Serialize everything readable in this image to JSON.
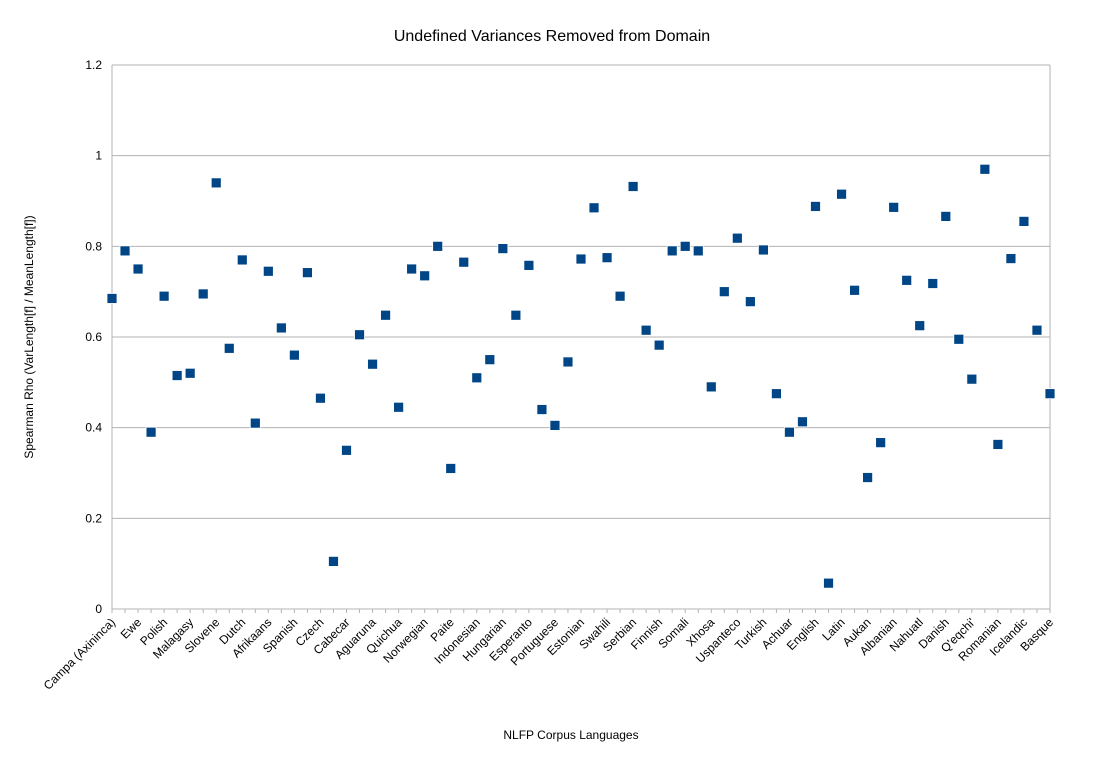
{
  "chart_data": {
    "type": "scatter",
    "title": "Undefined Variances Removed from Domain",
    "xlabel": "NLFP Corpus Languages",
    "ylabel": "Spearman Rho (VarLength[f] / MeanLength[f])",
    "ylim": [
      0,
      1.2
    ],
    "yticks": [
      "0",
      "0.2",
      "0.4",
      "0.6",
      "0.8",
      "1",
      "1.2"
    ],
    "grid": true,
    "legend": "none",
    "marker_color": "#004586",
    "labeled_categories": [
      "Campa (Axininca)",
      "Ewe",
      "Polish",
      "Malagasy",
      "Slovene",
      "Dutch",
      "Afrikaans",
      "Spanish",
      "Czech",
      "Cabecar",
      "Aguaruna",
      "Quichua",
      "Norwegian",
      "Paite",
      "Indonesian",
      "Hungarian",
      "Esperanto",
      "Portuguese",
      "Estonian",
      "Swahili",
      "Serbian",
      "Finnish",
      "Somali",
      "Xhosa",
      "Uspanteco",
      "Turkish",
      "Achuar",
      "English",
      "Latin",
      "Aukan",
      "Albanian",
      "Nahuatl",
      "Danish",
      "Q'eqchi'",
      "Romanian",
      "Icelandic",
      "Basque"
    ],
    "label_every": 2,
    "values": [
      0.685,
      0.79,
      0.75,
      0.39,
      0.69,
      0.515,
      0.52,
      0.695,
      0.94,
      0.575,
      0.77,
      0.41,
      0.745,
      0.62,
      0.56,
      0.742,
      0.465,
      0.105,
      0.35,
      0.605,
      0.54,
      0.648,
      0.445,
      0.75,
      0.735,
      0.8,
      0.31,
      0.765,
      0.51,
      0.55,
      0.795,
      0.648,
      0.758,
      0.44,
      0.405,
      0.545,
      0.772,
      0.885,
      0.775,
      0.69,
      0.932,
      0.615,
      0.582,
      0.79,
      0.8,
      0.79,
      0.49,
      0.7,
      0.818,
      0.678,
      0.792,
      0.475,
      0.39,
      0.413,
      0.888,
      0.057,
      0.915,
      0.703,
      0.29,
      0.367,
      0.886,
      0.725,
      0.625,
      0.718,
      0.866,
      0.595,
      0.507,
      0.97,
      0.363,
      0.773,
      0.855,
      0.615,
      0.475
    ]
  }
}
